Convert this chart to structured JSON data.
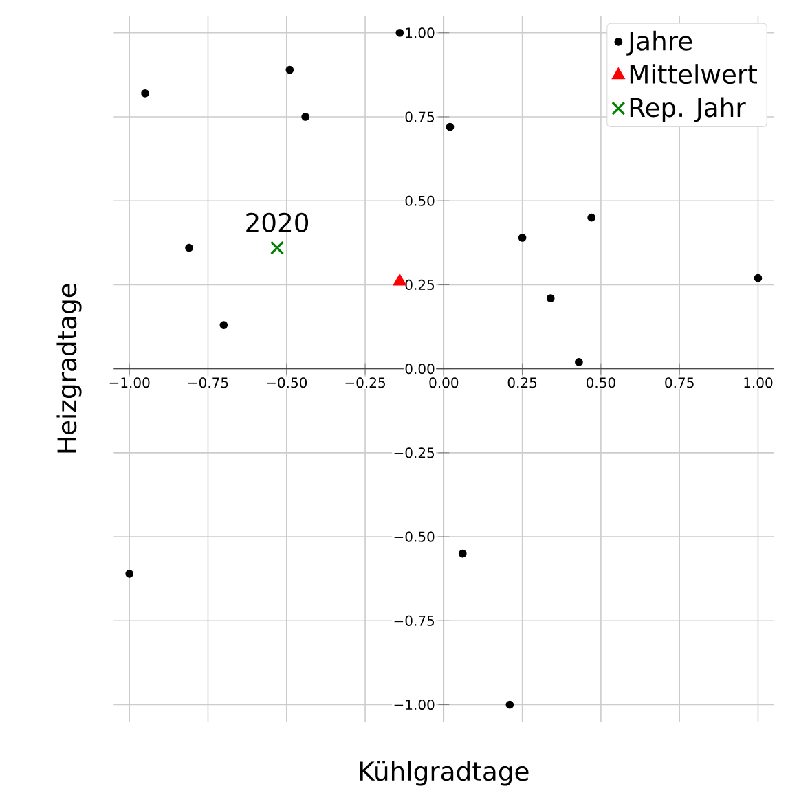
{
  "chart_data": {
    "type": "scatter",
    "xlabel": "Kühlgradtage",
    "ylabel": "Heizgradtage",
    "xlim": [
      -1.05,
      1.05
    ],
    "ylim": [
      -1.05,
      1.05
    ],
    "xticks": [
      {
        "value": -1,
        "label": "−1.00"
      },
      {
        "value": -0.75,
        "label": "−0.75"
      },
      {
        "value": -0.5,
        "label": "−0.50"
      },
      {
        "value": -0.25,
        "label": "−0.25"
      },
      {
        "value": 0,
        "label": "0.00"
      },
      {
        "value": 0.25,
        "label": "0.25"
      },
      {
        "value": 0.5,
        "label": "0.50"
      },
      {
        "value": 0.75,
        "label": "0.75"
      },
      {
        "value": 1,
        "label": "1.00"
      }
    ],
    "yticks": [
      {
        "value": -1,
        "label": "−1.00"
      },
      {
        "value": -0.75,
        "label": "−0.75"
      },
      {
        "value": -0.5,
        "label": "−0.50"
      },
      {
        "value": -0.25,
        "label": "−0.25"
      },
      {
        "value": 0,
        "label": "0.00"
      },
      {
        "value": 0.25,
        "label": "0.25"
      },
      {
        "value": 0.5,
        "label": "0.50"
      },
      {
        "value": 0.75,
        "label": "0.75"
      },
      {
        "value": 1,
        "label": "1.00"
      }
    ],
    "grid": true,
    "legend": "top right",
    "series": [
      {
        "name": "Jahre",
        "color": "#000000",
        "marker": "circle",
        "x": [
          -0.95,
          -0.49,
          -0.44,
          -0.14,
          0.02,
          -0.81,
          -0.7,
          0.25,
          0.47,
          0.34,
          0.43,
          1.0,
          -1.0,
          0.06,
          0.21
        ],
        "values": [
          0.82,
          0.89,
          0.75,
          1.0,
          0.72,
          0.36,
          0.13,
          0.39,
          0.45,
          0.21,
          0.02,
          0.27,
          -0.61,
          -0.55,
          -1.0
        ]
      },
      {
        "name": "Mittelwert",
        "color": "#ff0000",
        "marker": "triangle",
        "x": [
          -0.14
        ],
        "values": [
          0.26
        ]
      },
      {
        "name": "Rep. Jahr",
        "color": "#008000",
        "marker": "cross",
        "x": [
          -0.53
        ],
        "values": [
          0.36
        ]
      }
    ],
    "annotations": [
      {
        "text": "2020",
        "x": -0.53,
        "y": 0.36
      }
    ]
  }
}
